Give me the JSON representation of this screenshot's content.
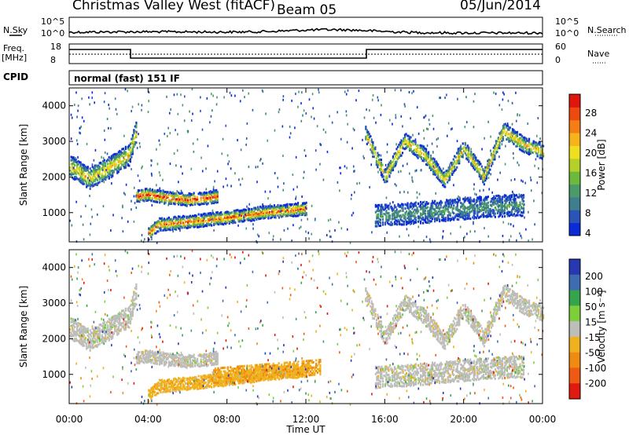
{
  "header": {
    "title": "Christmas Valley West (fitACF)",
    "beam": "Beam 05",
    "date": "05/Jun/2014"
  },
  "top_panels": {
    "nsky_label": "N.Sky",
    "nsearch_label": "N.Search",
    "noise_ticks": [
      "10^5",
      "10^0"
    ],
    "freq_label": "Freq.",
    "freq_unit": "[MHz]",
    "freq_ticks": [
      "18",
      "8"
    ],
    "nave_label": "Nave",
    "nave_ticks": [
      "60",
      "0"
    ],
    "cpid_label": "CPID",
    "cpid_value": "normal (fast) 151 IF"
  },
  "chart_data": [
    {
      "type": "heatmap",
      "name": "power",
      "ylabel": "Slant Range [km]",
      "yticks": [
        "4000",
        "3000",
        "2000",
        "1000"
      ],
      "ylim": [
        180,
        4500
      ],
      "colorbar_label": "Power [dB]",
      "colorbar_ticks": [
        "28",
        "24",
        "20",
        "16",
        "12",
        "8",
        "4"
      ],
      "colorbar_colors": [
        "#0b2bd8",
        "#2a54b8",
        "#3f7e8e",
        "#4a9a6a",
        "#6cba3c",
        "#b4d12a",
        "#f0df1e",
        "#f6b31a",
        "#f57e14",
        "#ee4a10",
        "#e0160e"
      ],
      "features": [
        {
          "x_hours": [
            0.0,
            1.0,
            2.0,
            3.0,
            3.4
          ],
          "range_km": [
            2300,
            1950,
            2250,
            2600,
            3300
          ]
        },
        {
          "x_hours": [
            3.4,
            4.0,
            5.0,
            6.0,
            7.0,
            7.5
          ],
          "range_km": [
            1450,
            1500,
            1400,
            1350,
            1400,
            1450
          ]
        },
        {
          "x_hours": [
            4.0,
            4.5,
            5.5,
            8.0,
            10.0,
            12.0
          ],
          "range_km": [
            400,
            650,
            700,
            850,
            1000,
            1100
          ]
        },
        {
          "x_hours": [
            15.0,
            16.0,
            17.0,
            18.0,
            19.0,
            20.0,
            21.0,
            22.0,
            23.0,
            24.0
          ],
          "range_km": [
            3200,
            2000,
            3000,
            2600,
            1900,
            2800,
            2000,
            3300,
            2900,
            2700
          ]
        },
        {
          "x_hours": [
            15.5,
            17.0,
            19.0,
            21.0,
            23.0
          ],
          "range_km": [
            900,
            950,
            1050,
            1150,
            1200
          ]
        }
      ]
    },
    {
      "type": "heatmap",
      "name": "velocity",
      "ylabel": "Slant Range [km]",
      "yticks": [
        "4000",
        "3000",
        "2000",
        "1000"
      ],
      "ylim": [
        180,
        4500
      ],
      "colorbar_label": "Velocity [m s⁻¹]",
      "colorbar_ticks": [
        "200",
        "100",
        "50",
        "15",
        "-15",
        "-50",
        "-100",
        "-200"
      ],
      "colorbar_colors": [
        "#2838b0",
        "#3e6cb0",
        "#35a44c",
        "#7ccf3a",
        "#bdbdb9",
        "#efb21e",
        "#ef8a12",
        "#ee5a14",
        "#e01a10"
      ],
      "xlabel": "Time UT",
      "xticks": [
        "00:00",
        "04:00",
        "08:00",
        "12:00",
        "16:00",
        "20:00",
        "00:00"
      ],
      "xlim": [
        0,
        24
      ]
    }
  ]
}
